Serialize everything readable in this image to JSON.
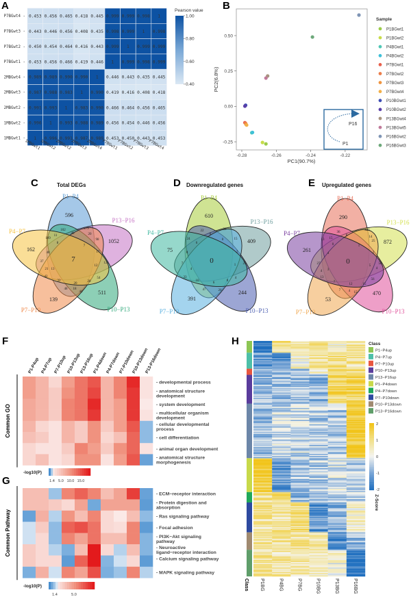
{
  "panel_labels": [
    "A",
    "B",
    "C",
    "D",
    "E",
    "F",
    "G",
    "H"
  ],
  "chart_data": [
    {
      "id": "A",
      "type": "heatmap",
      "legend_title": "Pearson value",
      "colorbar_ticks": [
        "1.00",
        "0.80",
        "0.60",
        "0.40"
      ],
      "clim": [
        0.4,
        1.0
      ],
      "rows": [
        "P7BGwt4",
        "P7BGwt3",
        "P7BGwt2",
        "P7BGwt1",
        "2MBGwt4",
        "2MBGwt3",
        "2MBGwt2",
        "1MBGwt2",
        "1MBGwt1"
      ],
      "cols": [
        "1MBGwt1",
        "1MBGwt2",
        "2MBGwt2",
        "2MBGwt3",
        "2MBGwt4",
        "P7BGwt1",
        "P7BGwt2",
        "P7BGwt3",
        "P7BGwt4"
      ],
      "values": [
        [
          "0.453",
          "0.456",
          "0.465",
          "0.418",
          "0.445",
          "0.999",
          "0.999",
          "0.998",
          "1"
        ],
        [
          "0.443",
          "0.446",
          "0.456",
          "0.408",
          "0.435",
          "0.998",
          "0.999",
          "1",
          "0.998"
        ],
        [
          "0.450",
          "0.454",
          "0.464",
          "0.416",
          "0.443",
          "0.999",
          "1",
          "0.999",
          "0.999"
        ],
        [
          "0.453",
          "0.456",
          "0.466",
          "0.419",
          "0.446",
          "1",
          "0.999",
          "0.998",
          "0.999"
        ],
        [
          "0.989",
          "0.989",
          "0.990",
          "0.990",
          "1",
          "0.446",
          "0.443",
          "0.435",
          "0.445"
        ],
        [
          "0.987",
          "0.988",
          "0.983",
          "1",
          "0.990",
          "0.419",
          "0.416",
          "0.408",
          "0.418"
        ],
        [
          "0.991",
          "0.993",
          "1",
          "0.983",
          "0.990",
          "0.466",
          "0.464",
          "0.456",
          "0.465"
        ],
        [
          "0.996",
          "1",
          "0.993",
          "0.988",
          "0.989",
          "0.456",
          "0.454",
          "0.446",
          "0.456"
        ],
        [
          "1",
          "0.996",
          "0.991",
          "0.987",
          "0.989",
          "0.453",
          "0.450",
          "0.443",
          "0.453"
        ]
      ]
    },
    {
      "id": "B",
      "type": "scatter",
      "xlabel": "PC1(90.7%)",
      "ylabel": "PC2(6.8%)",
      "xlim": [
        -0.283,
        -0.207
      ],
      "ylim": [
        -0.3,
        0.68
      ],
      "xticks": [
        "-0.28",
        "-0.26",
        "-0.24",
        "-0.22"
      ],
      "yticks": [
        "-0.25",
        "0.00",
        "0.25",
        "0.50"
      ],
      "legend_title": "Sample",
      "inset": {
        "start": "P1",
        "end": "P16"
      },
      "points": [
        {
          "name": "P1BGwt1",
          "x": -0.266,
          "y": -0.265,
          "color": "#9ccc4a"
        },
        {
          "name": "P1BGwt2",
          "x": -0.268,
          "y": -0.255,
          "color": "#c8dc4a"
        },
        {
          "name": "P4BGwt1",
          "x": -0.2742,
          "y": -0.186,
          "color": "#4fc7b5"
        },
        {
          "name": "P4BGwt2",
          "x": -0.2738,
          "y": -0.184,
          "color": "#3ec0d8"
        },
        {
          "name": "P7BGwt1",
          "x": -0.2782,
          "y": -0.115,
          "color": "#e8604c"
        },
        {
          "name": "P7BGwt2",
          "x": -0.2778,
          "y": -0.12,
          "color": "#eb7d4a"
        },
        {
          "name": "P7BGwt3",
          "x": -0.2775,
          "y": -0.128,
          "color": "#ef9540"
        },
        {
          "name": "P7BGwt4",
          "x": -0.2772,
          "y": -0.132,
          "color": "#f2b04a"
        },
        {
          "name": "P10BGwt1",
          "x": -0.2778,
          "y": 0.008,
          "color": "#3d4db5"
        },
        {
          "name": "P10BGwt2",
          "x": -0.2782,
          "y": 0.002,
          "color": "#5a3fa8"
        },
        {
          "name": "P13BGwt4",
          "x": -0.265,
          "y": 0.215,
          "color": "#a89480"
        },
        {
          "name": "P13BGwt5",
          "x": -0.266,
          "y": 0.2,
          "color": "#c07a9a"
        },
        {
          "name": "P16BGwt2",
          "x": -0.212,
          "y": 0.645,
          "color": "#7f95b5"
        },
        {
          "name": "P16BGwt3",
          "x": -0.239,
          "y": 0.49,
          "color": "#6da87a"
        }
      ]
    },
    {
      "id": "C",
      "type": "venn",
      "title": "Total DEGs",
      "sets": [
        "P1−P4",
        "P13−P16",
        "P10−P13",
        "P7−P10",
        "P4−P7"
      ],
      "colors": [
        "#5b9bd5",
        "#c572c4",
        "#2fa87a",
        "#f08a4b",
        "#f5c242"
      ],
      "region_values": [
        "596",
        "1052",
        "511",
        "139",
        "162",
        "7",
        "102",
        "279",
        "48",
        "20",
        "98",
        "17",
        "12",
        "121",
        "54",
        "20",
        "20",
        "44",
        "18",
        "48",
        "32",
        "42",
        "13",
        "21",
        "37",
        "40",
        "8",
        "7",
        "109",
        "11"
      ]
    },
    {
      "id": "D",
      "type": "venn",
      "title": "Downregulated genes",
      "sets": [
        "P1−P4",
        "P13−P16",
        "P10−P13",
        "P7−P10",
        "P4−P7"
      ],
      "colors": [
        "#a8cc3a",
        "#6f9e9e",
        "#4a5cb0",
        "#5ab0e0",
        "#3fb8a0"
      ],
      "region_values": [
        "610",
        "409",
        "244",
        "391",
        "75",
        "0",
        "22",
        "38",
        "0",
        "0",
        "15",
        "6",
        "24",
        "8",
        "2",
        "7",
        "4",
        "1",
        "25",
        "33",
        "10",
        "6",
        "8",
        "4",
        "47",
        "26"
      ]
    },
    {
      "id": "E",
      "type": "venn",
      "title": "Upregulated genes",
      "sets": [
        "P1−P4",
        "P13−P16",
        "P10−P13",
        "P7−P10",
        "P4−P7"
      ],
      "colors": [
        "#e8705a",
        "#d4e050",
        "#e0509a",
        "#f0a850",
        "#7a3fa0"
      ],
      "region_values": [
        "290",
        "872",
        "470",
        "53",
        "261",
        "0",
        "36",
        "425",
        "8",
        "14",
        "25",
        "13",
        "15",
        "0",
        "1",
        "2",
        "27",
        "4",
        "5",
        "58",
        "4",
        "3",
        "4",
        "13",
        "7",
        "12",
        "15",
        "56",
        "7",
        "4",
        "15"
      ]
    },
    {
      "id": "F",
      "type": "heatmap",
      "group_label": "Common GO",
      "legend_title": "-log10(P)",
      "colorbar_ticks": [
        "1.4",
        "5.0",
        "10.0",
        "15.0"
      ],
      "clim": [
        0,
        17
      ],
      "cols": [
        "P1-P4up",
        "P4-P7up",
        "P7-P10up",
        "P10-P13up",
        "P13-P16up",
        "P1-P4down",
        "P4-P7down",
        "P7-P10down",
        "P10-P13down",
        "P13-P16down"
      ],
      "rows": [
        "developmental process",
        "anatomical structure development",
        "system development",
        "multicellular organism development",
        "cellular developmental process",
        "cell differentiation",
        "animal organ development",
        "anatomical structure morphogenesis"
      ],
      "values": [
        [
          8,
          6,
          3,
          8,
          11,
          13,
          6,
          10,
          16,
          2
        ],
        [
          8,
          6,
          4,
          9,
          11,
          14,
          6,
          10,
          15,
          2
        ],
        [
          7,
          6,
          4,
          10,
          11,
          16,
          6,
          8,
          15,
          1.4
        ],
        [
          7,
          6,
          4,
          10,
          11,
          15,
          6,
          8,
          15,
          2
        ],
        [
          6,
          3,
          2,
          6,
          4,
          9,
          4,
          8,
          13,
          0.7
        ],
        [
          5,
          4,
          2,
          6,
          4,
          9,
          3,
          5,
          12,
          0.7
        ],
        [
          3,
          2,
          2,
          4,
          10,
          8,
          4,
          9,
          12,
          2
        ],
        [
          3,
          5,
          2,
          3,
          9,
          9,
          2,
          8,
          13,
          0.3
        ]
      ]
    },
    {
      "id": "G",
      "type": "heatmap",
      "group_label": "Common Pathway",
      "legend_title": "-log10(P)",
      "colorbar_ticks": [
        "1.4",
        "5.0"
      ],
      "clim": [
        0,
        8
      ],
      "cols": [
        "P1-P4up",
        "P4-P7up",
        "P7-P10up",
        "P10-P13up",
        "P13-P16up",
        "P1-P4down",
        "P4-P7down",
        "P7-P10down",
        "P10-P13down",
        "P13-P16down"
      ],
      "rows": [
        "ECM−receptor interaction",
        "Protein digestion and absorption",
        "Ras signaling pathway",
        "Focal adhesion",
        "PI3K−Akt signaling pathway",
        "Neuroactive ligand−receptor interaction",
        "Calcium signaling pathway",
        "MAPK signaling pathway"
      ],
      "values": [
        [
          3,
          3,
          0.8,
          5,
          6,
          5,
          3,
          4,
          7,
          0.3
        ],
        [
          3,
          3,
          2.5,
          2,
          4,
          0.4,
          4,
          4,
          4,
          0.2
        ],
        [
          0.3,
          3.5,
          1,
          4.5,
          3,
          5,
          2,
          1.4,
          3,
          0.7
        ],
        [
          1.2,
          2.5,
          0.7,
          6,
          6.5,
          5.5,
          2,
          1.8,
          5,
          0.2
        ],
        [
          1.2,
          2,
          0.7,
          5,
          4,
          5.5,
          3,
          3,
          5,
          0.6
        ],
        [
          2.5,
          2,
          1,
          0.5,
          3,
          8,
          2,
          1,
          3,
          0.6
        ],
        [
          2.5,
          2,
          2,
          0.2,
          6,
          8,
          0.6,
          1.2,
          2,
          0.2
        ],
        [
          0.5,
          3.5,
          1.2,
          5,
          4,
          6.5,
          0.5,
          0.8,
          5,
          1
        ]
      ]
    },
    {
      "id": "H",
      "type": "heatmap",
      "class_title": "Class",
      "class_axis_label": "Class",
      "legend_title": "Z-Score",
      "colorbar_ticks": [
        "2",
        "1",
        "0",
        "-1",
        "-2"
      ],
      "clim": [
        -2,
        2
      ],
      "cols": [
        "P1BG",
        "P4BG",
        "P7BG",
        "P10BG",
        "P13BG",
        "P16BG"
      ],
      "classes": [
        {
          "name": "P1−P4up",
          "color": "#8dc654",
          "row_share": 0.05,
          "mean_z": [
            -2,
            1,
            0.5,
            1,
            0.3,
            0.8
          ]
        },
        {
          "name": "P4−P7up",
          "color": "#4dbfa8",
          "row_share": 0.068,
          "mean_z": [
            -1.2,
            -1.5,
            0.3,
            0.8,
            1,
            0.8
          ]
        },
        {
          "name": "P7−P10up",
          "color": "#e8563f",
          "row_share": 0.026,
          "mean_z": [
            -1,
            -0.8,
            -0.8,
            0.3,
            1,
            1.2
          ]
        },
        {
          "name": "P10−P13up",
          "color": "#5a3c9c",
          "row_share": 0.122,
          "mean_z": [
            -0.8,
            -0.6,
            -0.7,
            -0.9,
            1.3,
            1.4
          ]
        },
        {
          "name": "P13−P16up",
          "color": "#6c86a8",
          "row_share": 0.232,
          "mean_z": [
            -0.8,
            -0.3,
            -0.3,
            -0.5,
            -0.6,
            1.9
          ]
        },
        {
          "name": "P1−P4down",
          "color": "#c8d94a",
          "row_share": 0.144,
          "mean_z": [
            1.8,
            -1.2,
            -0.6,
            -0.5,
            -0.2,
            -0.5
          ]
        },
        {
          "name": "P4−P7down",
          "color": "#1fa85a",
          "row_share": 0.044,
          "mean_z": [
            1,
            1.3,
            -0.8,
            -0.8,
            -0.6,
            -0.3
          ]
        },
        {
          "name": "P7−P10down",
          "color": "#2d4aa0",
          "row_share": 0.127,
          "mean_z": [
            0.8,
            0.8,
            1.2,
            -1.3,
            -0.8,
            0.4
          ]
        },
        {
          "name": "P10−P13down",
          "color": "#a08a70",
          "row_share": 0.074,
          "mean_z": [
            0.8,
            0.8,
            0.8,
            0.8,
            -1.5,
            -0.8
          ]
        },
        {
          "name": "P13−P16down",
          "color": "#5f9e6a",
          "row_share": 0.113,
          "mean_z": [
            0.8,
            0.7,
            0.7,
            0.3,
            0.2,
            -1.9
          ]
        }
      ]
    }
  ]
}
